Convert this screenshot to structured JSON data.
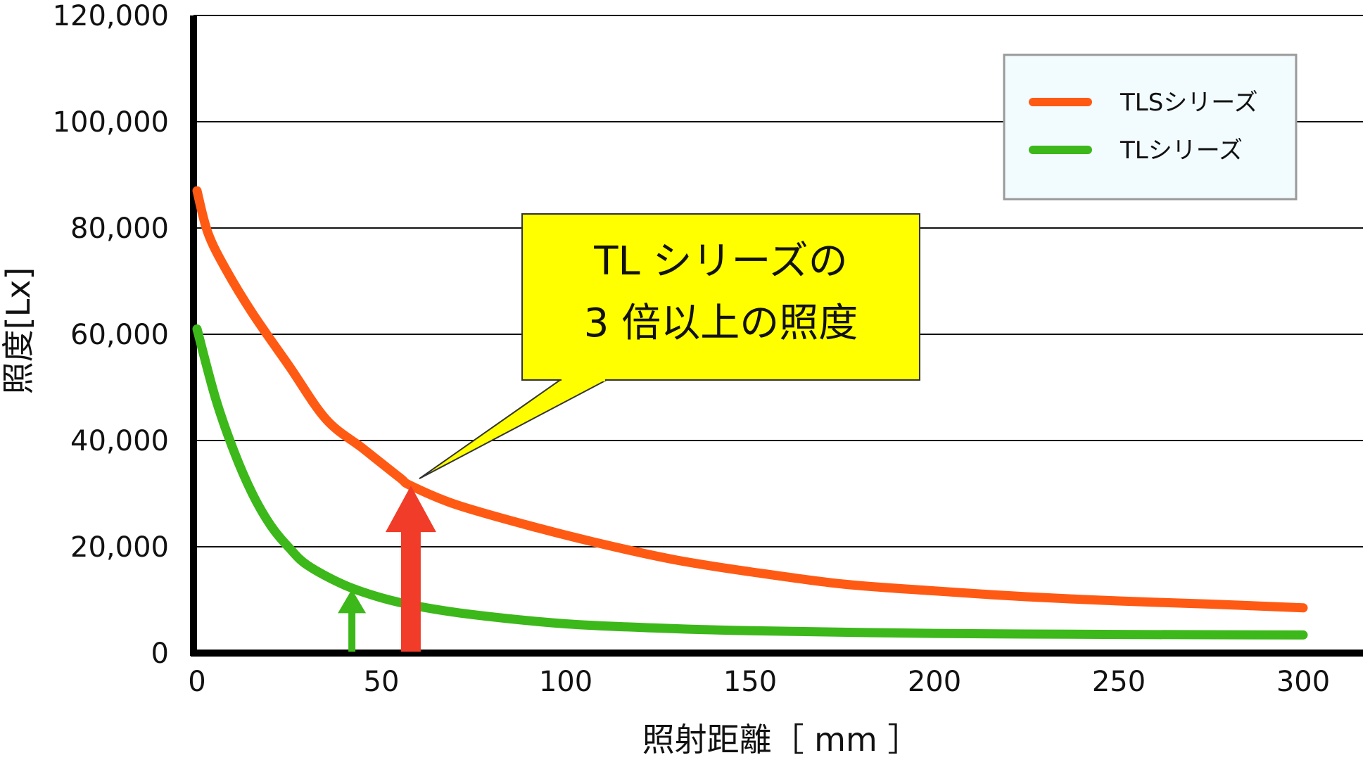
{
  "chart_data": {
    "type": "line",
    "xlabel": "照射距離［ mm ］",
    "ylabel": "照度[Lx]",
    "xlim": [
      0,
      300
    ],
    "ylim": [
      0,
      120000
    ],
    "x_ticks": [
      "0",
      "50",
      "100",
      "150",
      "200",
      "250",
      "300"
    ],
    "x_tick_values": [
      0,
      50,
      100,
      150,
      200,
      250,
      300
    ],
    "y_ticks": [
      "0",
      "20,000",
      "40,000",
      "60,000",
      "80,000",
      "100,000",
      "120,000"
    ],
    "y_tick_values": [
      0,
      20000,
      40000,
      60000,
      80000,
      100000,
      120000
    ],
    "grid": true,
    "legend_position": "top-right",
    "series": [
      {
        "name": "TLSシリーズ",
        "color": "#ff5a14",
        "points": [
          [
            0,
            87000
          ],
          [
            3,
            79000
          ],
          [
            8,
            72000
          ],
          [
            15,
            64000
          ],
          [
            25,
            54000
          ],
          [
            35,
            44000
          ],
          [
            45,
            38500
          ],
          [
            55,
            33000
          ],
          [
            58,
            31500
          ],
          [
            70,
            28000
          ],
          [
            90,
            24000
          ],
          [
            110,
            20500
          ],
          [
            130,
            17500
          ],
          [
            150,
            15300
          ],
          [
            175,
            13000
          ],
          [
            200,
            11700
          ],
          [
            225,
            10600
          ],
          [
            250,
            9800
          ],
          [
            275,
            9200
          ],
          [
            300,
            8500
          ]
        ]
      },
      {
        "name": "TLシリーズ",
        "color": "#3cb81a",
        "points": [
          [
            0,
            61000
          ],
          [
            5,
            48000
          ],
          [
            10,
            38000
          ],
          [
            15,
            30000
          ],
          [
            20,
            24000
          ],
          [
            25,
            19800
          ],
          [
            30,
            16500
          ],
          [
            40,
            12800
          ],
          [
            50,
            10400
          ],
          [
            60,
            8800
          ],
          [
            75,
            7200
          ],
          [
            100,
            5500
          ],
          [
            125,
            4700
          ],
          [
            150,
            4200
          ],
          [
            200,
            3700
          ],
          [
            250,
            3500
          ],
          [
            300,
            3400
          ]
        ]
      }
    ],
    "annotations": [
      {
        "lines": [
          "TL シリーズの",
          "3 倍以上の照度"
        ],
        "background": "#ffff00",
        "points_to": [
          58,
          31500
        ]
      }
    ],
    "arrows": [
      {
        "x": 58,
        "from": 0,
        "to": 31500,
        "color": "#f03c28"
      },
      {
        "x": 42,
        "from": 0,
        "to": 12000,
        "color": "#3cb81a"
      }
    ]
  }
}
